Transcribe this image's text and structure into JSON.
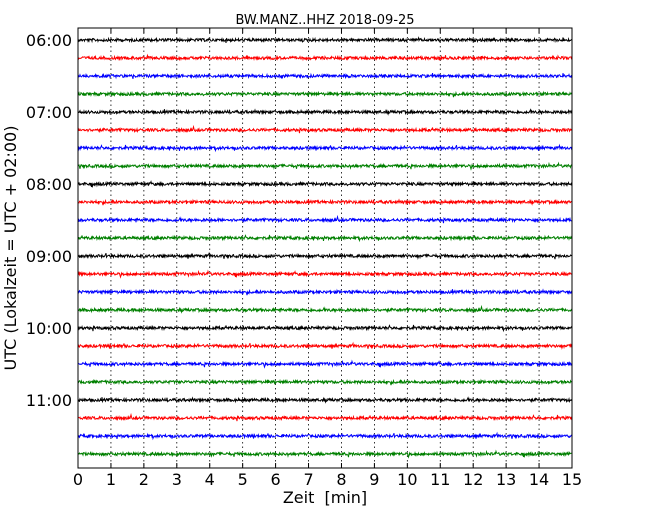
{
  "chart_data": {
    "type": "line",
    "title": "BW.MANZ..HHZ 2018-09-25",
    "xlabel": "Zeit  [min]",
    "ylabel": "UTC (Lokalzeit = UTC + 02:00)",
    "xlim": [
      0,
      15
    ],
    "x_ticks": [
      "0",
      "1",
      "2",
      "3",
      "4",
      "5",
      "6",
      "7",
      "8",
      "9",
      "10",
      "11",
      "12",
      "13",
      "14",
      "15"
    ],
    "y_ticks": [
      "06:00",
      "07:00",
      "08:00",
      "09:00",
      "10:00",
      "11:00"
    ],
    "grid": "vertical dotted",
    "trace_interval_min": 15,
    "colors": [
      "#000000",
      "#ff0000",
      "#0000ff",
      "#008000"
    ],
    "traces": [
      {
        "start": "06:00",
        "color": "#000000"
      },
      {
        "start": "06:15",
        "color": "#ff0000"
      },
      {
        "start": "06:30",
        "color": "#0000ff"
      },
      {
        "start": "06:45",
        "color": "#008000"
      },
      {
        "start": "07:00",
        "color": "#000000"
      },
      {
        "start": "07:15",
        "color": "#ff0000"
      },
      {
        "start": "07:30",
        "color": "#0000ff"
      },
      {
        "start": "07:45",
        "color": "#008000"
      },
      {
        "start": "08:00",
        "color": "#000000"
      },
      {
        "start": "08:15",
        "color": "#ff0000"
      },
      {
        "start": "08:30",
        "color": "#0000ff"
      },
      {
        "start": "08:45",
        "color": "#008000"
      },
      {
        "start": "09:00",
        "color": "#000000"
      },
      {
        "start": "09:15",
        "color": "#ff0000"
      },
      {
        "start": "09:30",
        "color": "#0000ff"
      },
      {
        "start": "09:45",
        "color": "#008000"
      },
      {
        "start": "10:00",
        "color": "#000000"
      },
      {
        "start": "10:15",
        "color": "#ff0000"
      },
      {
        "start": "10:30",
        "color": "#0000ff"
      },
      {
        "start": "10:45",
        "color": "#008000"
      },
      {
        "start": "11:00",
        "color": "#000000"
      },
      {
        "start": "11:15",
        "color": "#ff0000"
      },
      {
        "start": "11:30",
        "color": "#0000ff"
      },
      {
        "start": "11:45",
        "color": "#008000"
      }
    ]
  }
}
